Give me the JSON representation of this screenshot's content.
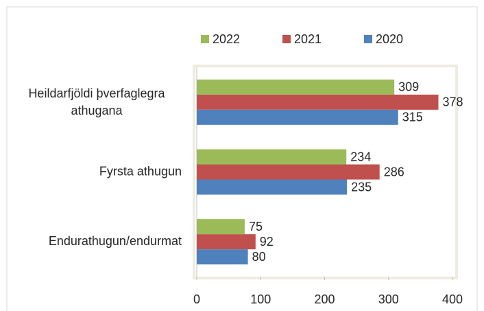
{
  "chart_data": {
    "type": "bar",
    "orientation": "horizontal",
    "categories": [
      "Heildarfjöldi þverfaglegra athugana",
      "Fyrsta athugun",
      "Endurathugun/endurmat"
    ],
    "series": [
      {
        "name": "2022",
        "color": "#9bbb59",
        "values": [
          309,
          234,
          75
        ]
      },
      {
        "name": "2021",
        "color": "#c0504d",
        "values": [
          378,
          286,
          92
        ]
      },
      {
        "name": "2020",
        "color": "#4f81bd",
        "values": [
          315,
          235,
          80
        ]
      }
    ],
    "xlim": [
      0,
      400
    ],
    "xticks": [
      0,
      100,
      200,
      300,
      400
    ],
    "legend": "top"
  }
}
